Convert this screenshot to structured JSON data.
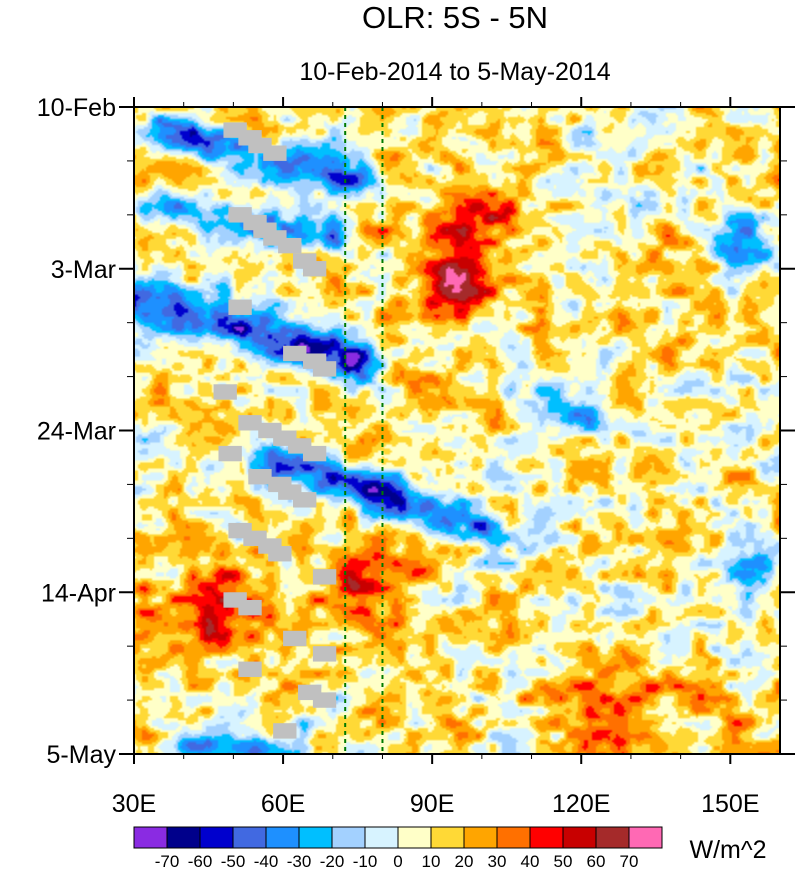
{
  "chart_data": {
    "type": "heatmap",
    "title": "OLR: 5S - 5N",
    "subtitle": "10-Feb-2014 to 5-May-2014",
    "x_range": [
      30,
      160
    ],
    "x_ticks": [
      {
        "value": 30,
        "label": "30E"
      },
      {
        "value": 60,
        "label": "60E"
      },
      {
        "value": 90,
        "label": "90E"
      },
      {
        "value": 120,
        "label": "120E"
      },
      {
        "value": 150,
        "label": "150E"
      }
    ],
    "y_range_days": [
      0,
      84
    ],
    "y_ticks": [
      {
        "day": 0,
        "label": "10-Feb"
      },
      {
        "day": 21,
        "label": "3-Mar"
      },
      {
        "day": 42,
        "label": "24-Mar"
      },
      {
        "day": 63,
        "label": "14-Apr"
      },
      {
        "day": 84,
        "label": "5-May"
      }
    ],
    "reference_lines_lon": [
      72.5,
      80
    ],
    "colorbar": {
      "unit_label": "W/m^2",
      "levels": [
        "-70",
        "-60",
        "-50",
        "-40",
        "-30",
        "-20",
        "-10",
        "0",
        "10",
        "20",
        "30",
        "40",
        "50",
        "60",
        "70"
      ],
      "colors": [
        "#8a2be2",
        "#00008b",
        "#0000cd",
        "#4169e1",
        "#1e90ff",
        "#00bfff",
        "#a3d1ff",
        "#d7f3ff",
        "#ffffc8",
        "#ffd936",
        "#ffa500",
        "#ff7000",
        "#ff0000",
        "#c80000",
        "#a52a2a",
        "#ff69b4"
      ]
    },
    "features": {
      "positive_core": {
        "lon": [
          88,
          103
        ],
        "day": [
          13,
          30
        ],
        "max": 60
      },
      "negative_band_early": {
        "lon_start": 30,
        "lon_end": 75,
        "day": [
          25,
          33
        ]
      },
      "negative_band_mid": {
        "lon_start": 60,
        "lon_end": 100,
        "day": [
          48,
          55
        ]
      },
      "positive_april": {
        "lon": [
          70,
          85
        ],
        "day": [
          58,
          70
        ],
        "max": 50
      },
      "missing_data_color": "#c0c0c0"
    }
  }
}
